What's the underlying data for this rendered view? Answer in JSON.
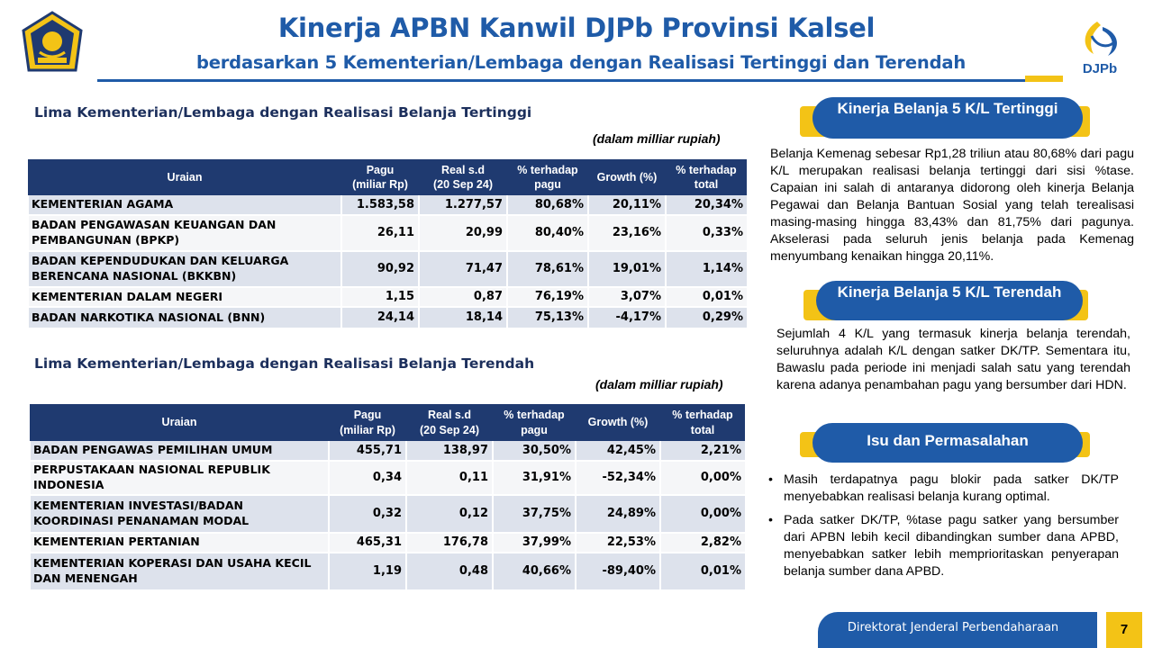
{
  "header": {
    "title": "Kinerja APBN Kanwil DJPb Provinsi Kalsel",
    "subtitle": "berdasarkan 5 Kementerian/Lembaga dengan Realisasi Tertinggi dan Terendah",
    "logo_right_text": "DJPb"
  },
  "colors": {
    "brand_blue": "#1f5ba8",
    "navy": "#1f3a70",
    "accent_yellow": "#f3c316",
    "row_shade": "#dde2ec"
  },
  "top_table": {
    "heading": "Lima Kementerian/Lembaga dengan Realisasi Belanja Tertinggi",
    "unit": "(dalam milliar rupiah)",
    "columns": [
      "Uraian",
      "Pagu\n(miliar Rp)",
      "Real s.d\n(20 Sep 24)",
      "% terhadap\npagu",
      "Growth (%)",
      "% terhadap\ntotal"
    ],
    "rows": [
      {
        "name": "KEMENTERIAN AGAMA",
        "pagu": "1.583,58",
        "real": "1.277,57",
        "pct_pagu": "80,68%",
        "growth": "20,11%",
        "pct_total": "20,34%"
      },
      {
        "name": "BADAN PENGAWASAN KEUANGAN DAN PEMBANGUNAN (BPKP)",
        "pagu": "26,11",
        "real": "20,99",
        "pct_pagu": "80,40%",
        "growth": "23,16%",
        "pct_total": "0,33%"
      },
      {
        "name": "BADAN KEPENDUDUKAN DAN KELUARGA BERENCANA NASIONAL (BKKBN)",
        "pagu": "90,92",
        "real": "71,47",
        "pct_pagu": "78,61%",
        "growth": "19,01%",
        "pct_total": "1,14%"
      },
      {
        "name": "KEMENTERIAN DALAM NEGERI",
        "pagu": "1,15",
        "real": "0,87",
        "pct_pagu": "76,19%",
        "growth": "3,07%",
        "pct_total": "0,01%"
      },
      {
        "name": "BADAN NARKOTIKA NASIONAL (BNN)",
        "pagu": "24,14",
        "real": "18,14",
        "pct_pagu": "75,13%",
        "growth": "-4,17%",
        "pct_total": "0,29%"
      }
    ]
  },
  "bottom_table": {
    "heading": "Lima Kementerian/Lembaga dengan Realisasi Belanja Terendah",
    "unit": "(dalam milliar rupiah)",
    "columns": [
      "Uraian",
      "Pagu\n(miliar Rp)",
      "Real s.d\n(20 Sep 24)",
      "% terhadap\npagu",
      "Growth (%)",
      "% terhadap\ntotal"
    ],
    "rows": [
      {
        "name": "BADAN PENGAWAS PEMILIHAN UMUM",
        "pagu": "455,71",
        "real": "138,97",
        "pct_pagu": "30,50%",
        "growth": "42,45%",
        "pct_total": "2,21%"
      },
      {
        "name": "PERPUSTAKAAN NASIONAL REPUBLIK INDONESIA",
        "pagu": "0,34",
        "real": "0,11",
        "pct_pagu": "31,91%",
        "growth": "-52,34%",
        "pct_total": "0,00%"
      },
      {
        "name": "KEMENTERIAN INVESTASI/BADAN KOORDINASI PENANAMAN MODAL",
        "pagu": "0,32",
        "real": "0,12",
        "pct_pagu": "37,75%",
        "growth": "24,89%",
        "pct_total": "0,00%"
      },
      {
        "name": "KEMENTERIAN PERTANIAN",
        "pagu": "465,31",
        "real": "176,78",
        "pct_pagu": "37,99%",
        "growth": "22,53%",
        "pct_total": "2,82%"
      },
      {
        "name": "KEMENTERIAN KOPERASI DAN USAHA KECIL DAN MENENGAH",
        "pagu": "1,19",
        "real": "0,48",
        "pct_pagu": "40,66%",
        "growth": "-89,40%",
        "pct_total": "0,01%"
      }
    ]
  },
  "right_panel": {
    "tertinggi": {
      "title": "Kinerja Belanja 5 K/L Tertinggi",
      "text": "Belanja Kemenag sebesar Rp1,28 triliun atau 80,68% dari pagu K/L merupakan realisasi belanja tertinggi dari sisi %tase. Capaian ini salah di antaranya didorong oleh kinerja Belanja Pegawai dan Belanja Bantuan Sosial yang telah terealisasi masing-masing hingga 83,43% dan 81,75% dari pagunya. Akselerasi pada seluruh jenis belanja pada Kemenag menyumbang kenaikan hingga 20,11%."
    },
    "terendah": {
      "title": "Kinerja Belanja 5 K/L Terendah",
      "text": "Sejumlah 4 K/L yang termasuk kinerja belanja terendah,  seluruhnya adalah K/L dengan satker DK/TP. Sementara itu, Bawaslu pada periode ini menjadi salah satu yang terendah karena adanya penambahan pagu yang bersumber dari HDN."
    },
    "isu": {
      "title": "Isu dan Permasalahan",
      "bullets": [
        "Masih terdapatnya pagu blokir pada satker DK/TP menyebabkan realisasi belanja kurang optimal.",
        "Pada satker DK/TP, %tase pagu satker yang bersumber dari APBN lebih kecil dibandingkan sumber dana APBD, menyebabkan satker lebih memprioritaskan penyerapan belanja sumber dana APBD."
      ]
    }
  },
  "footer": {
    "org": "Direktorat Jenderal Perbendaharaan",
    "page": "7"
  }
}
